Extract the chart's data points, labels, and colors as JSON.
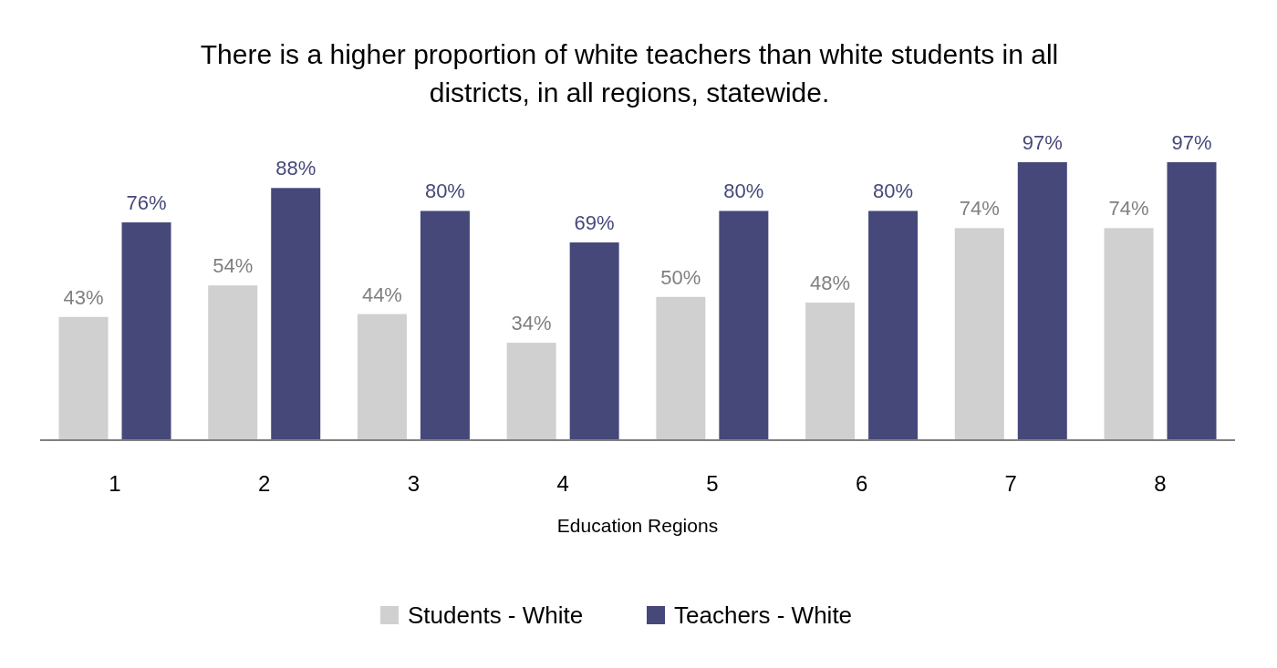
{
  "chart_data": {
    "type": "bar",
    "title": "There is a higher proportion of white teachers than white students in all districts, in all regions, statewide.",
    "xlabel": "Education Regions",
    "categories": [
      "1",
      "2",
      "3",
      "4",
      "5",
      "6",
      "7",
      "8"
    ],
    "series": [
      {
        "name": "Students - White",
        "color": "#d0d0d0",
        "values": [
          43,
          54,
          44,
          34,
          50,
          48,
          74,
          74
        ],
        "value_labels": [
          "43%",
          "54%",
          "44%",
          "34%",
          "50%",
          "48%",
          "74%",
          "74%"
        ]
      },
      {
        "name": "Teachers - White",
        "color": "#454879",
        "values": [
          76,
          88,
          80,
          69,
          80,
          80,
          97,
          97
        ],
        "value_labels": [
          "76%",
          "88%",
          "80%",
          "69%",
          "80%",
          "80%",
          "97%",
          "97%"
        ]
      }
    ],
    "legend": "bottom"
  }
}
